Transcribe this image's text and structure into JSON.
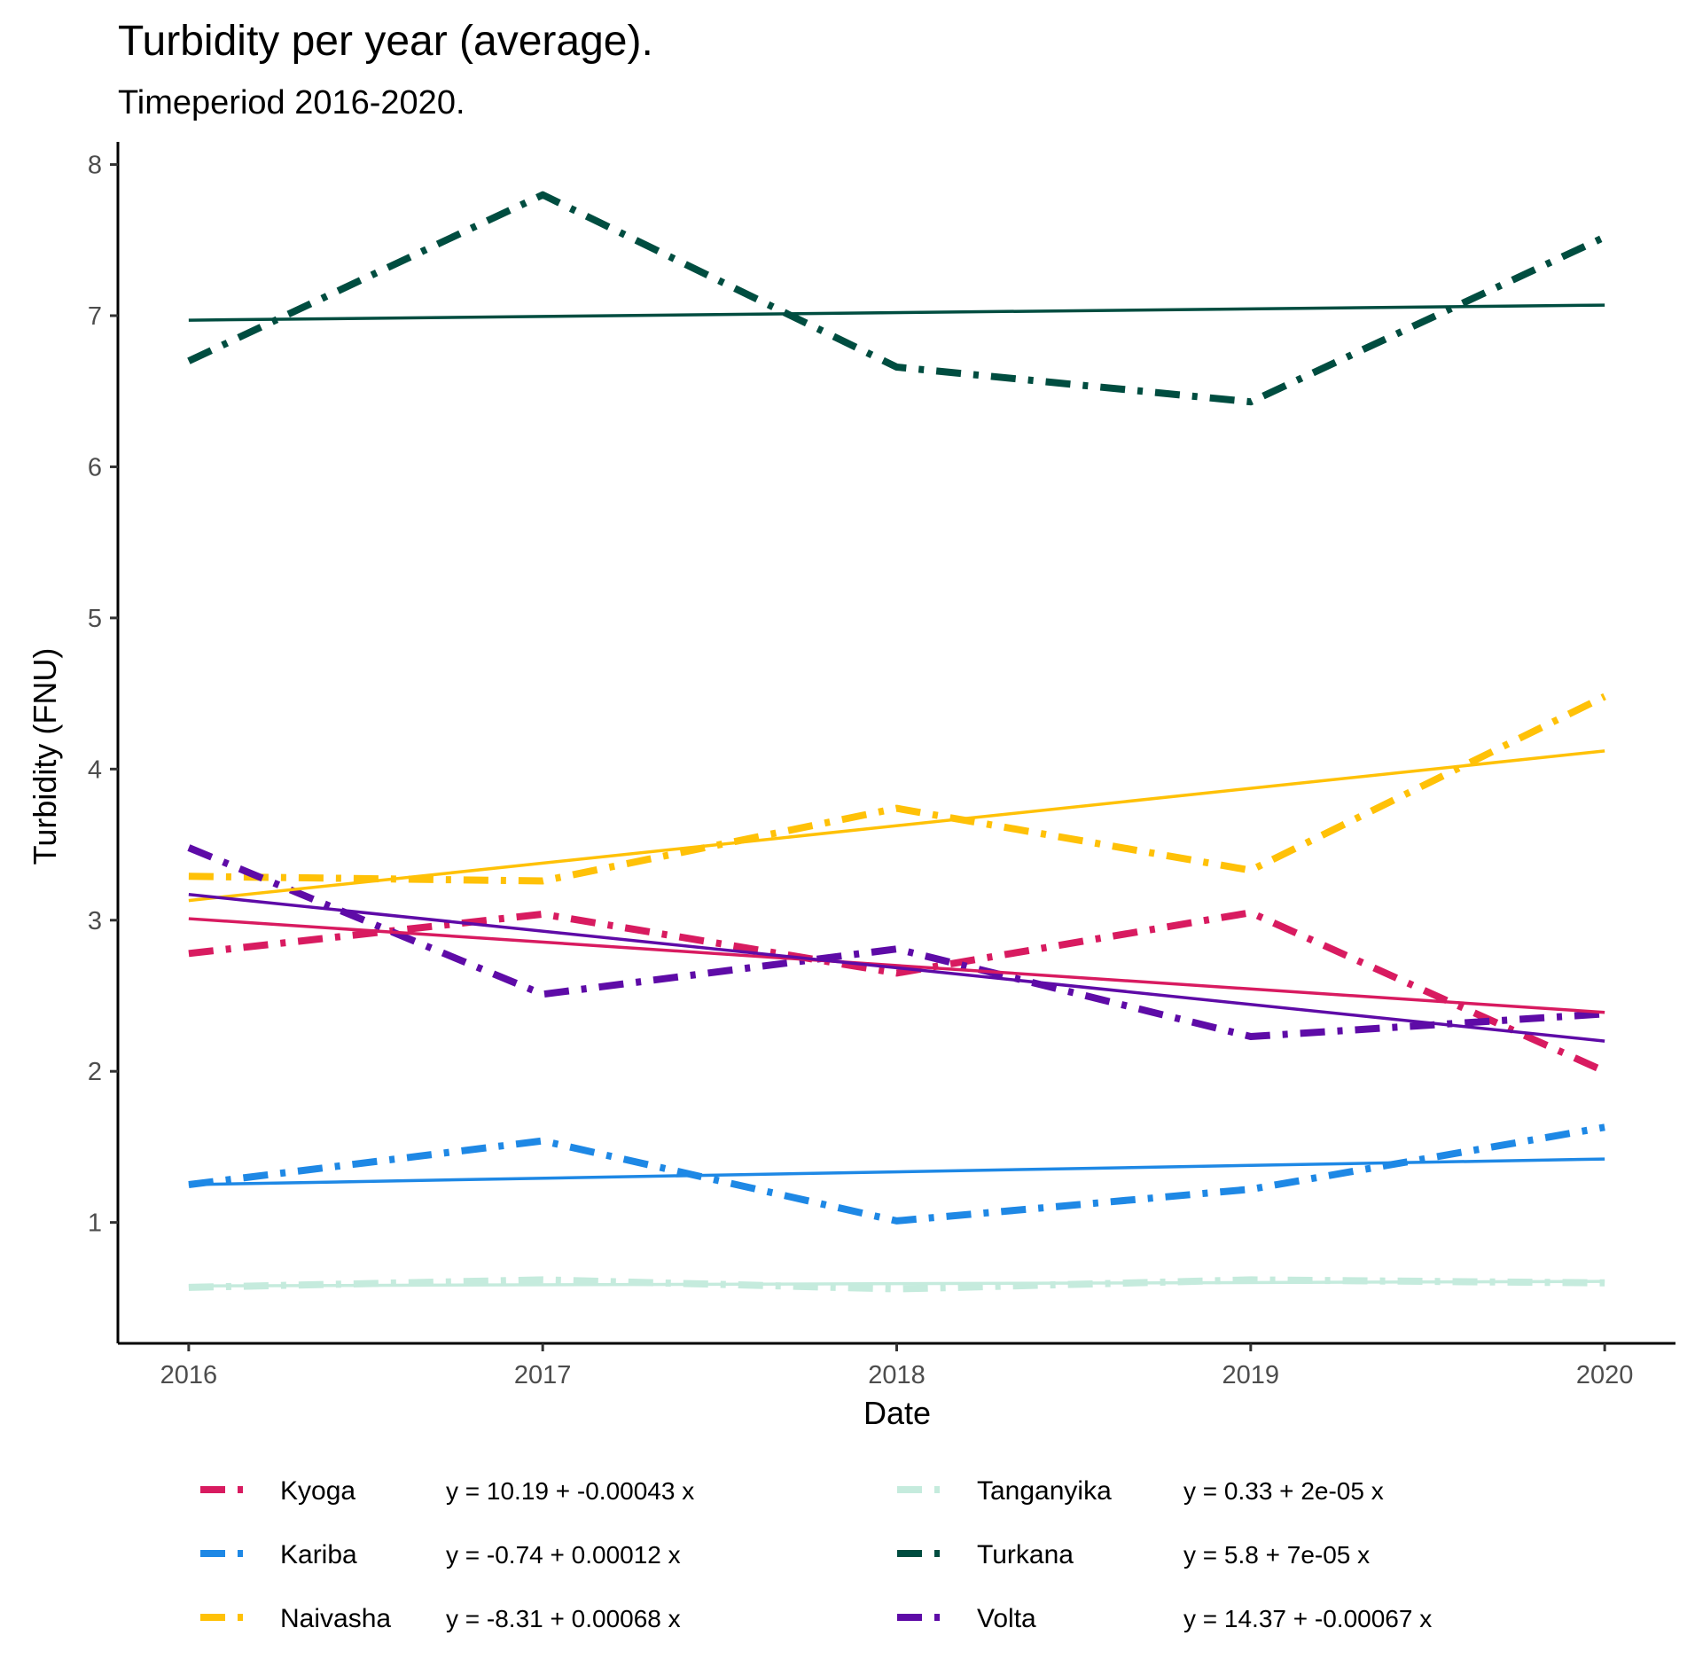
{
  "chart_data": {
    "type": "line",
    "title": "Turbidity per year (average).",
    "subtitle": "Timeperiod 2016-2020.",
    "xlabel": "Date",
    "ylabel": "Turbidity (FNU)",
    "x": [
      2016,
      2017,
      2018,
      2019,
      2020
    ],
    "x_ticks": [
      "2016",
      "2017",
      "2018",
      "2019",
      "2020"
    ],
    "xlim": [
      2015.8,
      2020.2
    ],
    "y_ticks": [
      1,
      2,
      3,
      4,
      5,
      6,
      7,
      8
    ],
    "ylim": [
      0.2,
      8.15
    ],
    "grid": false,
    "legend_position": "bottom",
    "series": [
      {
        "name": "Kyoga",
        "color": "#D81B60",
        "equation": "y = 10.19 + -0.00043 x",
        "values": [
          2.78,
          3.04,
          2.65,
          3.05,
          2.0
        ],
        "trend": [
          3.01,
          2.39
        ]
      },
      {
        "name": "Kariba",
        "color": "#1E88E5",
        "equation": "y = -0.74 + 0.00012 x",
        "values": [
          1.25,
          1.54,
          1.01,
          1.22,
          1.63
        ],
        "trend": [
          1.25,
          1.42
        ]
      },
      {
        "name": "Naivasha",
        "color": "#FFC107",
        "equation": "y = -8.31 + 0.00068 x",
        "values": [
          3.29,
          3.26,
          3.74,
          3.33,
          4.48
        ],
        "trend": [
          3.13,
          4.12
        ]
      },
      {
        "name": "Tanganyika",
        "color": "#C5EBDD",
        "equation": "y = 0.33 + 2e-05 x",
        "values": [
          0.57,
          0.62,
          0.56,
          0.62,
          0.6
        ],
        "trend": [
          0.58,
          0.61
        ]
      },
      {
        "name": "Turkana",
        "color": "#004D40",
        "equation": "y = 5.8 + 7e-05 x",
        "values": [
          6.7,
          7.8,
          6.66,
          6.43,
          7.52
        ],
        "trend": [
          6.97,
          7.07
        ]
      },
      {
        "name": "Volta",
        "color": "#5E0BA7",
        "equation": "y = 14.37 + -0.00067 x",
        "values": [
          3.48,
          2.51,
          2.81,
          2.23,
          2.38
        ],
        "trend": [
          3.17,
          2.2
        ]
      }
    ]
  }
}
